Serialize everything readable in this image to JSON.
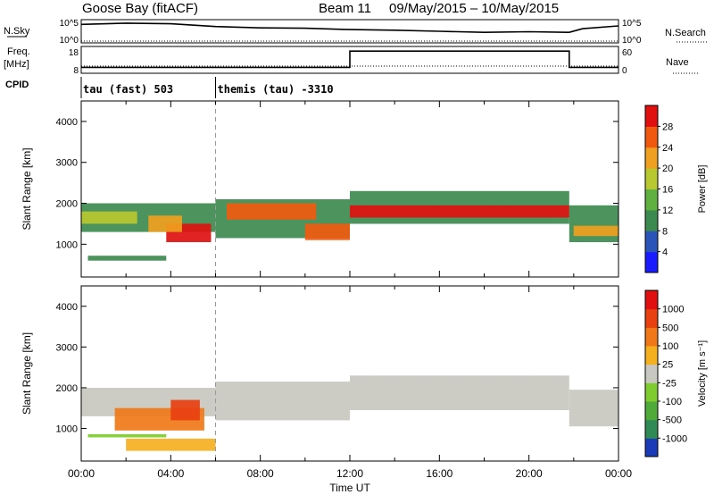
{
  "chart_data": {
    "type": "heatmap",
    "station": "Goose Bay (fitACF)",
    "beam_label": "Beam 11",
    "date_range": "09/May/2015 – 10/May/2015",
    "xlabel": "Time UT",
    "x_ticks": [
      "00:00",
      "04:00",
      "08:00",
      "12:00",
      "16:00",
      "20:00",
      "00:00"
    ],
    "xlim_hours": [
      0,
      24
    ],
    "top_panels": {
      "nsky": {
        "label": "N.Sky",
        "right_label": "N.Search",
        "left_ticks": [
          "10^5",
          "10^0"
        ],
        "right_ticks": [
          "10^5",
          "10^0"
        ],
        "series": [
          {
            "hour": 0.0,
            "level": 0.82
          },
          {
            "hour": 2.0,
            "level": 0.88
          },
          {
            "hour": 4.0,
            "level": 0.85
          },
          {
            "hour": 6.0,
            "level": 0.72
          },
          {
            "hour": 8.0,
            "level": 0.66
          },
          {
            "hour": 10.0,
            "level": 0.64
          },
          {
            "hour": 12.0,
            "level": 0.58
          },
          {
            "hour": 14.0,
            "level": 0.55
          },
          {
            "hour": 16.0,
            "level": 0.5
          },
          {
            "hour": 18.0,
            "level": 0.45
          },
          {
            "hour": 20.0,
            "level": 0.48
          },
          {
            "hour": 21.8,
            "level": 0.45
          },
          {
            "hour": 22.4,
            "level": 0.62
          },
          {
            "hour": 24.0,
            "level": 0.75
          }
        ]
      },
      "freq": {
        "label": "Freq.",
        "unit": "[MHz]",
        "right_label": "Nave",
        "left_ticks": [
          "18",
          "8"
        ],
        "right_ticks": [
          "60",
          "0"
        ],
        "steps": [
          {
            "start": 0,
            "end": 12,
            "level": 0.2
          },
          {
            "start": 12,
            "end": 21.8,
            "level": 0.85
          },
          {
            "start": 21.8,
            "end": 24,
            "level": 0.2
          }
        ]
      },
      "cpid": {
        "label": "CPID",
        "segments": [
          {
            "start": 0,
            "label": "tau (fast) 503"
          },
          {
            "start": 6.0,
            "label": "themis (tau) -3310"
          }
        ]
      }
    },
    "panels": [
      {
        "quantity": "Power",
        "ylabel": "Slant Range [km]",
        "yticks": [
          1000,
          2000,
          3000,
          4000
        ],
        "ylim": [
          200,
          4500
        ],
        "colorbar": {
          "label": "Power [dB]",
          "ticks": [
            "4",
            "8",
            "12",
            "16",
            "20",
            "24",
            "28"
          ],
          "colors": [
            "#1a1aff",
            "#2a54b8",
            "#3d8a50",
            "#5fb040",
            "#b8c830",
            "#f0a020",
            "#f05a10",
            "#e01010"
          ]
        },
        "regions": [
          {
            "t0": 0.0,
            "t1": 6.0,
            "r0": 1300,
            "r1": 2000,
            "level": 2
          },
          {
            "t0": 0.0,
            "t1": 2.5,
            "r0": 1500,
            "r1": 1800,
            "level": 4
          },
          {
            "t0": 3.8,
            "t1": 5.8,
            "r0": 1050,
            "r1": 1500,
            "level": 7
          },
          {
            "t0": 3.0,
            "t1": 4.5,
            "r0": 1300,
            "r1": 1700,
            "level": 5
          },
          {
            "t0": 0.3,
            "t1": 3.8,
            "r0": 600,
            "r1": 720,
            "level": 2
          },
          {
            "t0": 6.0,
            "t1": 12.0,
            "r0": 1150,
            "r1": 2100,
            "level": 2
          },
          {
            "t0": 6.5,
            "t1": 10.5,
            "r0": 1600,
            "r1": 2000,
            "level": 6
          },
          {
            "t0": 10.0,
            "t1": 12.0,
            "r0": 1100,
            "r1": 1500,
            "level": 6
          },
          {
            "t0": 12.0,
            "t1": 21.8,
            "r0": 1500,
            "r1": 2300,
            "level": 2
          },
          {
            "t0": 12.0,
            "t1": 21.8,
            "r0": 1650,
            "r1": 1950,
            "level": 7
          },
          {
            "t0": 21.8,
            "t1": 24.0,
            "r0": 1050,
            "r1": 1950,
            "level": 2
          },
          {
            "t0": 22.0,
            "t1": 24.0,
            "r0": 1200,
            "r1": 1450,
            "level": 5
          }
        ]
      },
      {
        "quantity": "Velocity",
        "ylabel": "Slant Range [km]",
        "yticks": [
          1000,
          2000,
          3000,
          4000
        ],
        "ylim": [
          200,
          4500
        ],
        "colorbar": {
          "label": "Velocity [m s⁻¹]",
          "ticks": [
            "1000",
            "500",
            "100",
            "25",
            "-25",
            "-100",
            "-500",
            "-1000"
          ],
          "colors": [
            "#1a3ab8",
            "#2f8a55",
            "#4faa3a",
            "#7fcc30",
            "#c8c8c0",
            "#f5b020",
            "#f07818",
            "#e84010",
            "#e01010"
          ]
        },
        "regions": [
          {
            "t0": 0.0,
            "t1": 6.0,
            "r0": 1300,
            "r1": 2000,
            "level": 4
          },
          {
            "t0": 1.5,
            "t1": 5.5,
            "r0": 950,
            "r1": 1500,
            "level": 6
          },
          {
            "t0": 4.0,
            "t1": 5.3,
            "r0": 1200,
            "r1": 1700,
            "level": 7
          },
          {
            "t0": 0.3,
            "t1": 3.8,
            "r0": 780,
            "r1": 860,
            "level": 3
          },
          {
            "t0": 2.0,
            "t1": 6.0,
            "r0": 450,
            "r1": 750,
            "level": 5
          },
          {
            "t0": 6.0,
            "t1": 12.0,
            "r0": 1200,
            "r1": 2150,
            "level": 4
          },
          {
            "t0": 12.0,
            "t1": 21.8,
            "r0": 1450,
            "r1": 2300,
            "level": 4
          },
          {
            "t0": 21.8,
            "t1": 24.0,
            "r0": 1050,
            "r1": 1950,
            "level": 4
          }
        ]
      }
    ]
  }
}
